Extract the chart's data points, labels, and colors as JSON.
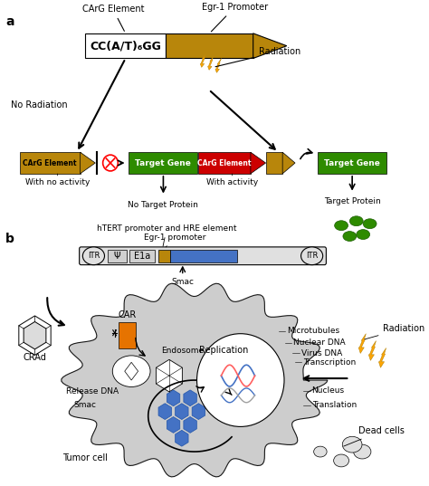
{
  "fig_width": 4.74,
  "fig_height": 5.37,
  "dpi": 100,
  "bg_color": "#ffffff",
  "panel_a_label": "a",
  "panel_b_label": "b",
  "carg_color_gold": "#B8860B",
  "carg_color_red": "#CC0000",
  "target_gene_color": "#2E8B00",
  "carg_box_text": "CC(A/T)₆GG",
  "carg_element_label": "CArG Element",
  "egr1_promoter_label": "Egr-1 Promoter",
  "radiation_label": "Radiation",
  "no_radiation_label": "No Radiation",
  "target_gene_label": "Target Gene",
  "with_no_activity_label": "With no activity",
  "with_activity_label": "With activity",
  "no_target_protein_label": "No Target Protein",
  "target_protein_label": "Target Protein",
  "htert_label": "hTERT promoter and HRE element",
  "egr1_promoter_label2": "Egr-1 promoter",
  "smac_label": "Smac",
  "itr_label": "ITR",
  "psi_label": "Ψ",
  "e1a_label": "E1a",
  "car_label": "CAR",
  "endosome_label": "Endosome",
  "replication_label": "Replication",
  "release_dna_label": "Release DNA",
  "smac_label2": "Smac",
  "tumor_cell_label": "Tumor cell",
  "crad_label": "CRAd",
  "microtubules_label": "Microtubules",
  "nuclear_dna_label": "Nuclear DNA",
  "virus_dna_label": "Virus DNA",
  "transcription_label": "Transcription",
  "nucleus_label": "Nucleus",
  "translation_label": "Translation",
  "dead_cells_label": "Dead cells",
  "radiation_label2": "Radiation",
  "lightning_color": "#FFA500",
  "lightning_dark": "#DAA520",
  "blue_hex_color": "#4472C4",
  "orange_rect_color": "#E67300",
  "green_protein_color": "#2E8B00"
}
